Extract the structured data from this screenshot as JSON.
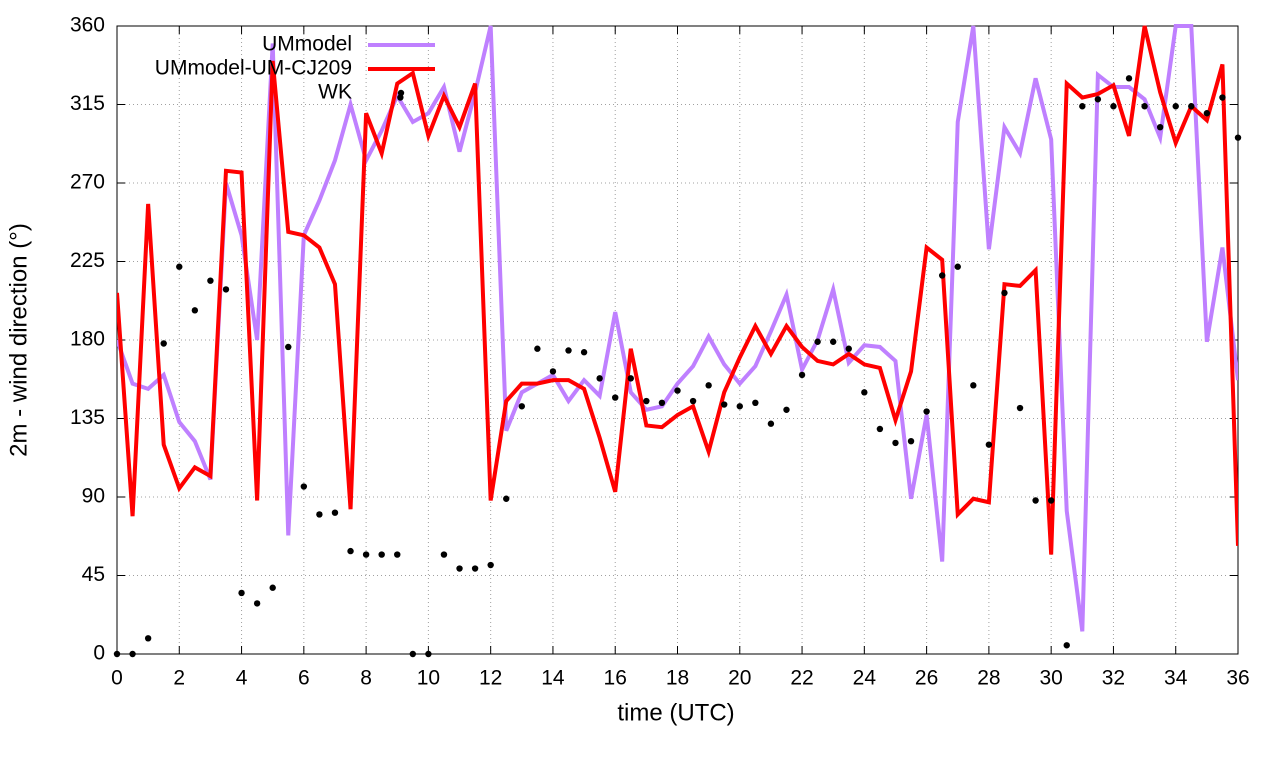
{
  "chart_data": {
    "type": "line",
    "xlabel": "time (UTC)",
    "ylabel": "2m - wind direction (°)",
    "x": [
      0,
      0.5,
      1,
      1.5,
      2,
      2.5,
      3,
      3.5,
      4,
      4.5,
      5,
      5.5,
      6,
      6.5,
      7,
      7.5,
      8,
      8.5,
      9,
      9.5,
      10,
      10.5,
      11,
      11.5,
      12,
      12.5,
      13,
      13.5,
      14,
      14.5,
      15,
      15.5,
      16,
      16.5,
      17,
      17.5,
      18,
      18.5,
      19,
      19.5,
      20,
      20.5,
      21,
      21.5,
      22,
      22.5,
      23,
      23.5,
      24,
      24.5,
      25,
      25.5,
      26,
      26.5,
      27,
      27.5,
      28,
      28.5,
      29,
      29.5,
      30,
      30.5,
      31,
      31.5,
      32,
      32.5,
      33,
      33.5,
      34,
      34.5,
      35,
      35.5,
      36
    ],
    "series": [
      {
        "name": "UMmodel",
        "color": "#bf80ff",
        "values": [
          180,
          155,
          152,
          160,
          133,
          122,
          100,
          270,
          240,
          180,
          350,
          68,
          240,
          260,
          283,
          315,
          283,
          300,
          320,
          305,
          310,
          325,
          288,
          322,
          360,
          128,
          150,
          155,
          160,
          145,
          157,
          148,
          196,
          150,
          140,
          142,
          155,
          165,
          182,
          166,
          155,
          165,
          185,
          206,
          163,
          180,
          209,
          167,
          177,
          176,
          168,
          89,
          137,
          53,
          305,
          360,
          232,
          302,
          287,
          330,
          295,
          82,
          13,
          332,
          325,
          325,
          318,
          296,
          360,
          360,
          179,
          233,
          157
        ]
      },
      {
        "name": "UMmodel-UM-CJ209",
        "color": "#ff0000",
        "values": [
          207,
          79,
          258,
          120,
          95,
          107,
          102,
          277,
          276,
          88,
          340,
          242,
          240,
          233,
          212,
          83,
          310,
          287,
          327,
          333,
          297,
          320,
          302,
          327,
          88,
          145,
          155,
          155,
          157,
          157,
          152,
          124,
          93,
          175,
          131,
          130,
          137,
          142,
          116,
          150,
          170,
          188,
          172,
          188,
          176,
          168,
          166,
          172,
          166,
          164,
          134,
          162,
          233,
          226,
          80,
          89,
          87,
          212,
          211,
          220,
          57,
          327,
          319,
          321,
          326,
          297,
          360,
          322,
          293,
          314,
          306,
          338,
          62
        ]
      },
      {
        "name": "WK",
        "color": "#000000",
        "style": "points",
        "x": [
          0,
          0.5,
          1,
          1.5,
          2,
          2.5,
          3,
          3.5,
          4,
          4.5,
          5,
          5.5,
          6,
          6.5,
          7,
          7.5,
          8,
          8.5,
          9,
          9.1,
          9.5,
          10,
          10.5,
          11,
          11.5,
          12,
          12.5,
          13,
          13.5,
          14,
          14.5,
          15,
          15.5,
          16,
          16.5,
          17,
          17.5,
          18,
          18.5,
          19,
          19.5,
          20,
          20.5,
          21,
          21.5,
          22,
          22.5,
          23,
          23.5,
          24,
          24.5,
          25,
          25.5,
          26,
          26.5,
          27,
          27.5,
          28,
          28.5,
          29,
          29.5,
          30,
          30.5,
          31,
          31.5,
          32,
          32.5,
          33,
          33.5,
          34,
          34.5,
          35,
          35.5,
          36
        ],
        "values": [
          0,
          0,
          9,
          178,
          222,
          197,
          214,
          209,
          35,
          29,
          38,
          176,
          96,
          80,
          81,
          59,
          57,
          57,
          57,
          319,
          0,
          0,
          57,
          49,
          49,
          51,
          89,
          142,
          175,
          162,
          174,
          173,
          158,
          147,
          158,
          145,
          144,
          151,
          145,
          154,
          143,
          142,
          144,
          132,
          140,
          160,
          179,
          179,
          175,
          150,
          129,
          121,
          122,
          139,
          217,
          222,
          154,
          120,
          207,
          141,
          88,
          88,
          5,
          314,
          318,
          314,
          330,
          314,
          302,
          314,
          314,
          310,
          319,
          296
        ]
      }
    ],
    "xlim": [
      0,
      36
    ],
    "xticks": [
      0,
      2,
      4,
      6,
      8,
      10,
      12,
      14,
      16,
      18,
      20,
      22,
      24,
      26,
      28,
      30,
      32,
      34,
      36
    ],
    "ylim": [
      0,
      360
    ],
    "yticks": [
      0,
      45,
      90,
      135,
      180,
      225,
      270,
      315,
      360
    ],
    "grid": true,
    "legend": "top-left"
  }
}
